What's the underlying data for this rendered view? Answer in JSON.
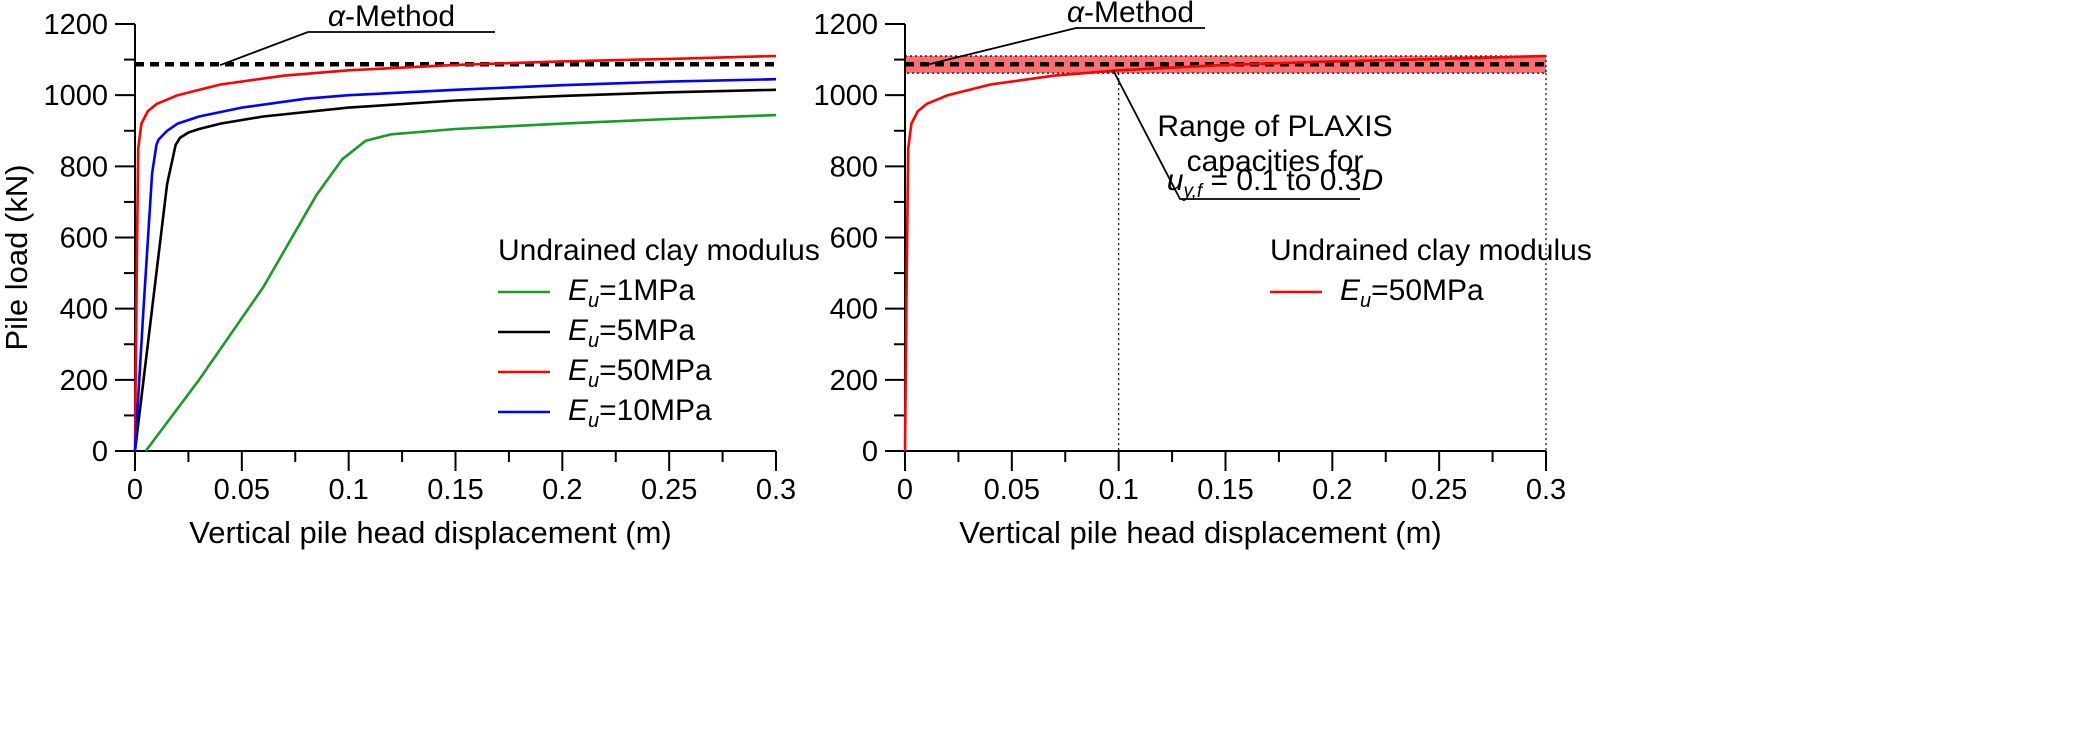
{
  "chart_data": [
    {
      "type": "line",
      "xlabel": "Vertical pile head displacement (m)",
      "ylabel": "Pile load (kN)",
      "xlim": [
        0,
        0.3
      ],
      "ylim": [
        0,
        1200
      ],
      "xticks": [
        "0",
        "0.05",
        "0.1",
        "0.15",
        "0.2",
        "0.25",
        "0.3"
      ],
      "yticks": [
        "0",
        "200",
        "400",
        "600",
        "800",
        "1000",
        "1200"
      ],
      "grid": false,
      "legend": {
        "title": "Undrained clay modulus",
        "placement": "right",
        "entries": [
          {
            "symbol": "E",
            "sub": "u",
            "rest": "=1MPa",
            "color": "#1a9a2a"
          },
          {
            "symbol": "E",
            "sub": "u",
            "rest": "=5MPa",
            "color": "#000000"
          },
          {
            "symbol": "E",
            "sub": "u",
            "rest": "=50MPa",
            "color": "#ff0000"
          },
          {
            "symbol": "E",
            "sub": "u",
            "rest": "=10MPa",
            "color": "#0000ff"
          }
        ]
      },
      "annotations": [
        {
          "greek": "α",
          "text": "-Method",
          "value": 1087,
          "style": "dashed",
          "color": "#000000"
        }
      ],
      "series": [
        {
          "name": "Eu=1MPa",
          "color": "#1a9a2a",
          "x": [
            0.005,
            0.03,
            0.06,
            0.085,
            0.097,
            0.108,
            0.12,
            0.15,
            0.2,
            0.25,
            0.3
          ],
          "y": [
            0,
            200,
            460,
            720,
            820,
            872,
            890,
            905,
            920,
            933,
            944
          ]
        },
        {
          "name": "Eu=5MPa",
          "color": "#000000",
          "x": [
            0,
            0.008,
            0.015,
            0.019,
            0.021,
            0.025,
            0.03,
            0.04,
            0.06,
            0.1,
            0.15,
            0.2,
            0.25,
            0.3
          ],
          "y": [
            0,
            400,
            750,
            860,
            880,
            895,
            905,
            920,
            940,
            965,
            985,
            998,
            1008,
            1015
          ]
        },
        {
          "name": "Eu=50MPa",
          "color": "#ff0000",
          "x": [
            0,
            0.0008,
            0.0015,
            0.003,
            0.006,
            0.01,
            0.02,
            0.04,
            0.07,
            0.1,
            0.15,
            0.2,
            0.25,
            0.3
          ],
          "y": [
            0,
            500,
            850,
            920,
            955,
            975,
            1000,
            1030,
            1055,
            1070,
            1085,
            1095,
            1102,
            1110
          ]
        },
        {
          "name": "Eu=10MPa",
          "color": "#0000ff",
          "x": [
            0,
            0.004,
            0.008,
            0.01,
            0.011,
            0.015,
            0.02,
            0.03,
            0.05,
            0.08,
            0.1,
            0.15,
            0.2,
            0.25,
            0.3
          ],
          "y": [
            0,
            400,
            780,
            860,
            875,
            900,
            920,
            940,
            965,
            990,
            1000,
            1015,
            1028,
            1038,
            1045
          ]
        }
      ]
    },
    {
      "type": "line",
      "xlabel": "Vertical pile head displacement (m)",
      "ylabel": "",
      "xlim": [
        0,
        0.3
      ],
      "ylim": [
        0,
        1200
      ],
      "xticks": [
        "0",
        "0.05",
        "0.1",
        "0.15",
        "0.2",
        "0.25",
        "0.3"
      ],
      "yticks": [
        "0",
        "200",
        "400",
        "600",
        "800",
        "1000",
        "1200"
      ],
      "grid": false,
      "legend": {
        "title": "Undrained clay modulus",
        "placement": "right",
        "entries": [
          {
            "symbol": "E",
            "sub": "u",
            "rest": "=50MPa",
            "color": "#ff0000"
          }
        ]
      },
      "annotations": [
        {
          "greek": "α",
          "text": "-Method",
          "value": 1087,
          "style": "dashed",
          "color": "#000000"
        },
        {
          "lines": [
            "Range of PLAXIS",
            "capacities for"
          ],
          "eq": {
            "var": "u",
            "sub": "y,f",
            "mid": " = 0.1 to 0.3",
            "end": "D"
          },
          "band": [
            1062,
            1110
          ],
          "band_color": "#ff6f6f",
          "x_markers": [
            0.1,
            0.3
          ]
        }
      ],
      "series": [
        {
          "name": "Eu=50MPa",
          "color": "#ff0000",
          "x": [
            0,
            0.0008,
            0.0015,
            0.003,
            0.006,
            0.01,
            0.02,
            0.04,
            0.07,
            0.1,
            0.15,
            0.2,
            0.25,
            0.3
          ],
          "y": [
            0,
            500,
            850,
            920,
            955,
            975,
            1000,
            1030,
            1055,
            1070,
            1085,
            1095,
            1102,
            1110
          ]
        }
      ]
    }
  ]
}
